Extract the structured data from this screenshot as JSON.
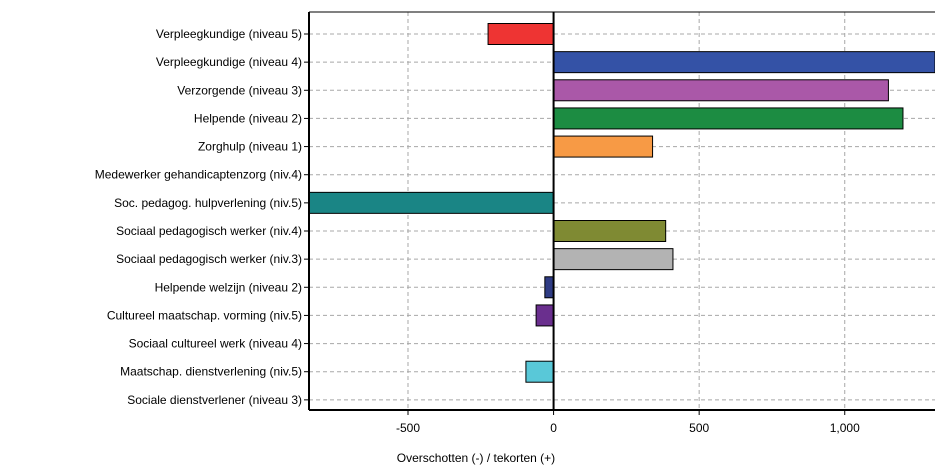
{
  "chart_data": {
    "type": "bar",
    "orientation": "horizontal",
    "xlabel": "Overschotten (-) / tekorten (+)",
    "xlim": [
      -840,
      1310
    ],
    "xticks": [
      -500,
      0,
      500,
      1000
    ],
    "xtick_labels": [
      "-500",
      "0",
      "500",
      "1,000"
    ],
    "grid": true,
    "categories": [
      "Verpleegkundige (niveau 5)",
      "Verpleegkundige (niveau 4)",
      "Verzorgende (niveau 3)",
      "Helpende (niveau 2)",
      "Zorghulp (niveau 1)",
      "Medewerker gehandicaptenzorg (niv.4)",
      "Soc. pedagog. hulpverlening (niv.5)",
      "Sociaal pedagogisch werker (niv.4)",
      "Sociaal pedagogisch werker (niv.3)",
      "Helpende welzijn (niveau 2)",
      "Cultureel maatschap. vorming (niv.5)",
      "Sociaal cultureel werk (niveau 4)",
      "Maatschap. dienstverlening (niv.5)",
      "Sociale dienstverlener (niveau 3)"
    ],
    "values": [
      -225,
      1310,
      1150,
      1200,
      340,
      0,
      -840,
      385,
      410,
      -30,
      -60,
      0,
      -95,
      0
    ],
    "colors": [
      "#ee3433",
      "#3452a6",
      "#aa58a8",
      "#1c8c42",
      "#f79a45",
      "#cc3333",
      "#1a8585",
      "#7f8a33",
      "#b3b3b3",
      "#2f3c84",
      "#6a2f8e",
      "#999999",
      "#59c8d8",
      "#999999"
    ]
  }
}
